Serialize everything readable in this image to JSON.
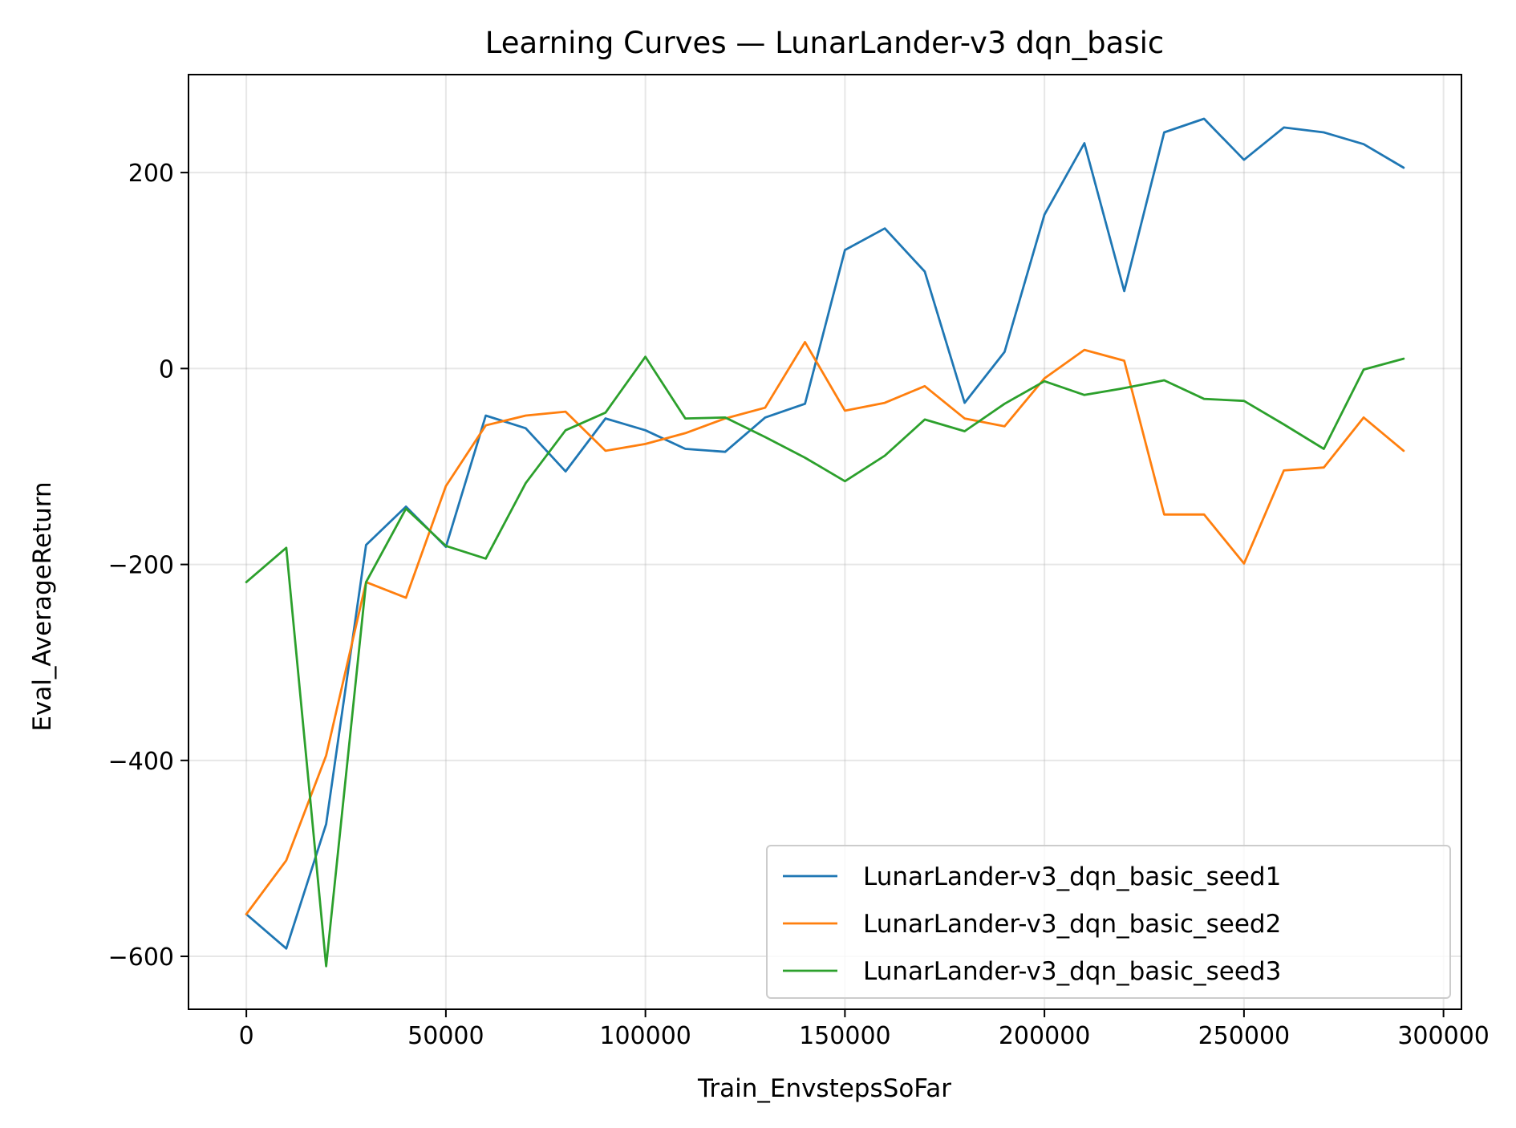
{
  "chart_data": {
    "type": "line",
    "title": "Learning Curves — LunarLander-v3 dqn_basic",
    "xlabel": "Train_EnvstepsSoFar",
    "ylabel": "Eval_AverageReturn",
    "xlim": [
      -14500,
      304500
    ],
    "ylim": [
      -654,
      300
    ],
    "xticks": [
      0,
      50000,
      100000,
      150000,
      200000,
      250000,
      300000
    ],
    "xtick_labels": [
      "0",
      "50000",
      "100000",
      "150000",
      "200000",
      "250000",
      "300000"
    ],
    "yticks": [
      -600,
      -400,
      -200,
      0,
      200
    ],
    "ytick_labels": [
      "−600",
      "−400",
      "−200",
      "0",
      "200"
    ],
    "grid": true,
    "legend_position": "lower-right",
    "x": [
      0,
      10000,
      20000,
      30000,
      40000,
      50000,
      60000,
      70000,
      80000,
      90000,
      100000,
      110000,
      120000,
      130000,
      140000,
      150000,
      160000,
      170000,
      180000,
      190000,
      200000,
      210000,
      220000,
      230000,
      240000,
      250000,
      260000,
      270000,
      280000,
      290000
    ],
    "series": [
      {
        "name": "LunarLander-v3_dqn_basic_seed1",
        "color": "#1f77b4",
        "values": [
          -557,
          -592,
          -465,
          -180,
          -141,
          -182,
          -48,
          -61,
          -105,
          -51,
          -63,
          -82,
          -85,
          -50,
          -36,
          121,
          143,
          99,
          -35,
          17,
          157,
          230,
          79,
          241,
          255,
          213,
          246,
          241,
          229,
          205
        ]
      },
      {
        "name": "LunarLander-v3_dqn_basic_seed2",
        "color": "#ff7f0e",
        "values": [
          -557,
          -502,
          -395,
          -218,
          -234,
          -120,
          -58,
          -48,
          -44,
          -84,
          -77,
          -66,
          -51,
          -40,
          27,
          -43,
          -35,
          -18,
          -51,
          -59,
          -10,
          19,
          8,
          -149,
          -149,
          -199,
          -104,
          -101,
          -50,
          -84
        ]
      },
      {
        "name": "LunarLander-v3_dqn_basic_seed3",
        "color": "#2ca02c",
        "values": [
          -218,
          -183,
          -610,
          -218,
          -143,
          -181,
          -194,
          -117,
          -63,
          -45,
          12,
          -51,
          -50,
          -70,
          -91,
          -115,
          -89,
          -52,
          -64,
          -36,
          -13,
          -27,
          -20,
          -12,
          -31,
          -33,
          -57,
          -82,
          -1,
          10
        ]
      }
    ]
  }
}
